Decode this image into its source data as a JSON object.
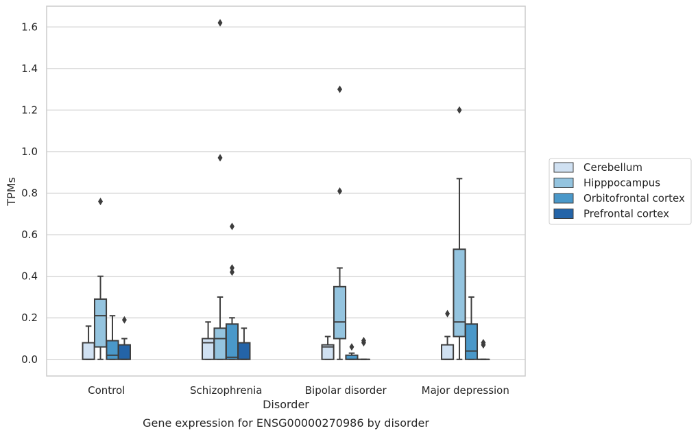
{
  "chart_data": {
    "type": "box",
    "caption": "Gene expression for ENSG00000270986 by disorder",
    "xlabel": "Disorder",
    "ylabel": "TPMs",
    "ylim": [
      -0.08,
      1.7
    ],
    "yticks": [
      0.0,
      0.2,
      0.4,
      0.6,
      0.8,
      1.0,
      1.2,
      1.4,
      1.6
    ],
    "ytick_labels": [
      "0.0",
      "0.2",
      "0.4",
      "0.6",
      "0.8",
      "1.0",
      "1.2",
      "1.4",
      "1.6"
    ],
    "grid": "horizontal",
    "legend_position": "right-outside",
    "categories": [
      "Control",
      "Schizophrenia",
      "Bipolar disorder",
      "Major depression"
    ],
    "series": [
      {
        "name": "Cerebellum",
        "color": "#d0e1f2",
        "boxes": [
          {
            "whislo": 0.0,
            "q1": 0.0,
            "med": 0.0,
            "q3": 0.08,
            "whishi": 0.16,
            "fliers": []
          },
          {
            "whislo": 0.0,
            "q1": 0.0,
            "med": 0.08,
            "q3": 0.1,
            "whishi": 0.18,
            "fliers": []
          },
          {
            "whislo": 0.0,
            "q1": 0.0,
            "med": 0.06,
            "q3": 0.07,
            "whishi": 0.11,
            "fliers": []
          },
          {
            "whislo": 0.0,
            "q1": 0.0,
            "med": 0.0,
            "q3": 0.07,
            "whishi": 0.11,
            "fliers": [
              0.22
            ]
          }
        ]
      },
      {
        "name": "Hipppocampus",
        "color": "#94c4df",
        "boxes": [
          {
            "whislo": 0.0,
            "q1": 0.06,
            "med": 0.21,
            "q3": 0.29,
            "whishi": 0.4,
            "fliers": [
              0.76
            ]
          },
          {
            "whislo": 0.0,
            "q1": 0.0,
            "med": 0.1,
            "q3": 0.15,
            "whishi": 0.3,
            "fliers": [
              0.97,
              1.62
            ]
          },
          {
            "whislo": 0.0,
            "q1": 0.1,
            "med": 0.18,
            "q3": 0.35,
            "whishi": 0.44,
            "fliers": [
              0.81,
              1.3
            ]
          },
          {
            "whislo": 0.0,
            "q1": 0.11,
            "med": 0.18,
            "q3": 0.53,
            "whishi": 0.87,
            "fliers": [
              1.2
            ]
          }
        ]
      },
      {
        "name": "Orbitofrontal cortex",
        "color": "#4a98c9",
        "boxes": [
          {
            "whislo": 0.0,
            "q1": 0.0,
            "med": 0.02,
            "q3": 0.09,
            "whishi": 0.21,
            "fliers": []
          },
          {
            "whislo": 0.0,
            "q1": 0.0,
            "med": 0.01,
            "q3": 0.17,
            "whishi": 0.2,
            "fliers": [
              0.42,
              0.44,
              0.64
            ]
          },
          {
            "whislo": 0.0,
            "q1": 0.0,
            "med": 0.0,
            "q3": 0.02,
            "whishi": 0.03,
            "fliers": [
              0.06
            ]
          },
          {
            "whislo": 0.0,
            "q1": 0.0,
            "med": 0.04,
            "q3": 0.17,
            "whishi": 0.3,
            "fliers": []
          }
        ]
      },
      {
        "name": "Prefrontal cortex",
        "color": "#2464a8",
        "boxes": [
          {
            "whislo": 0.0,
            "q1": 0.0,
            "med": 0.0,
            "q3": 0.07,
            "whishi": 0.1,
            "fliers": [
              0.19
            ]
          },
          {
            "whislo": 0.0,
            "q1": 0.0,
            "med": 0.0,
            "q3": 0.08,
            "whishi": 0.15,
            "fliers": []
          },
          {
            "whislo": 0.0,
            "q1": 0.0,
            "med": 0.0,
            "q3": 0.0,
            "whishi": 0.0,
            "fliers": [
              0.08,
              0.09
            ]
          },
          {
            "whislo": 0.0,
            "q1": 0.0,
            "med": 0.0,
            "q3": 0.0,
            "whishi": 0.0,
            "fliers": [
              0.07,
              0.08
            ]
          }
        ]
      }
    ]
  }
}
